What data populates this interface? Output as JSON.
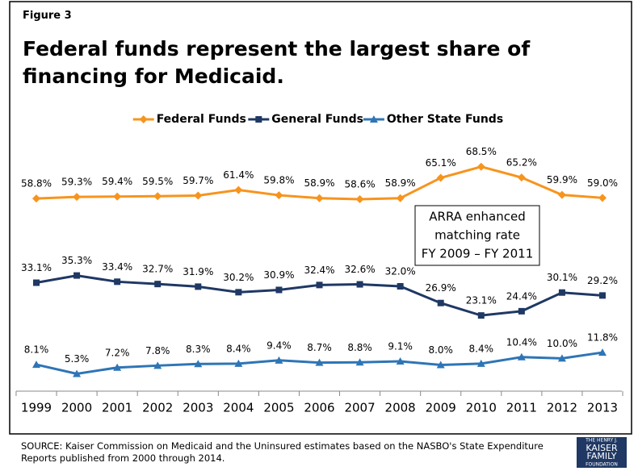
{
  "figure_label": "Figure 3",
  "chart_data": {
    "type": "line",
    "title": "Federal funds represent the largest share of financing for Medicaid.",
    "categories": [
      "1999",
      "2000",
      "2001",
      "2002",
      "2003",
      "2004",
      "2005",
      "2006",
      "2007",
      "2008",
      "2009",
      "2010",
      "2011",
      "2012",
      "2013"
    ],
    "series": [
      {
        "name": "Federal Funds",
        "color": "#f7941d",
        "marker": "diamond",
        "values": [
          58.8,
          59.3,
          59.4,
          59.5,
          59.7,
          61.4,
          59.8,
          58.9,
          58.6,
          58.9,
          65.1,
          68.5,
          65.2,
          59.9,
          59.0
        ],
        "value_labels": [
          "58.8%",
          "59.3%",
          "59.4%",
          "59.5%",
          "59.7%",
          "61.4%",
          "59.8%",
          "58.9%",
          "58.6%",
          "58.9%",
          "65.1%",
          "68.5%",
          "65.2%",
          "59.9%",
          "59.0%"
        ]
      },
      {
        "name": "General Funds",
        "color": "#1f3864",
        "marker": "square",
        "values": [
          33.1,
          35.3,
          33.4,
          32.7,
          31.9,
          30.2,
          30.9,
          32.4,
          32.6,
          32.0,
          26.9,
          23.1,
          24.4,
          30.1,
          29.2
        ],
        "value_labels": [
          "33.1%",
          "35.3%",
          "33.4%",
          "32.7%",
          "31.9%",
          "30.2%",
          "30.9%",
          "32.4%",
          "32.6%",
          "32.0%",
          "26.9%",
          "23.1%",
          "24.4%",
          "30.1%",
          "29.2%"
        ]
      },
      {
        "name": "Other State Funds",
        "color": "#2e75b6",
        "marker": "triangle",
        "values": [
          8.1,
          5.3,
          7.2,
          7.8,
          8.3,
          8.4,
          9.4,
          8.7,
          8.8,
          9.1,
          8.0,
          8.4,
          10.4,
          10.0,
          11.8
        ],
        "value_labels": [
          "8.1%",
          "5.3%",
          "7.2%",
          "7.8%",
          "8.3%",
          "8.4%",
          "9.4%",
          "8.7%",
          "8.8%",
          "9.1%",
          "8.0%",
          "8.4%",
          "10.4%",
          "10.0%",
          "11.8%"
        ]
      }
    ],
    "ylim": [
      0,
      80
    ],
    "legend": "top",
    "annotation": [
      "ARRA enhanced",
      "matching rate",
      "FY 2009 – FY 2011"
    ]
  },
  "source": "SOURCE: Kaiser Commission on Medicaid and the Uninsured estimates based on the NASBO's State Expenditure Reports published from 2000 through 2014.",
  "logo": [
    "THE HENRY J.",
    "KAISER",
    "FAMILY",
    "FOUNDATION"
  ]
}
